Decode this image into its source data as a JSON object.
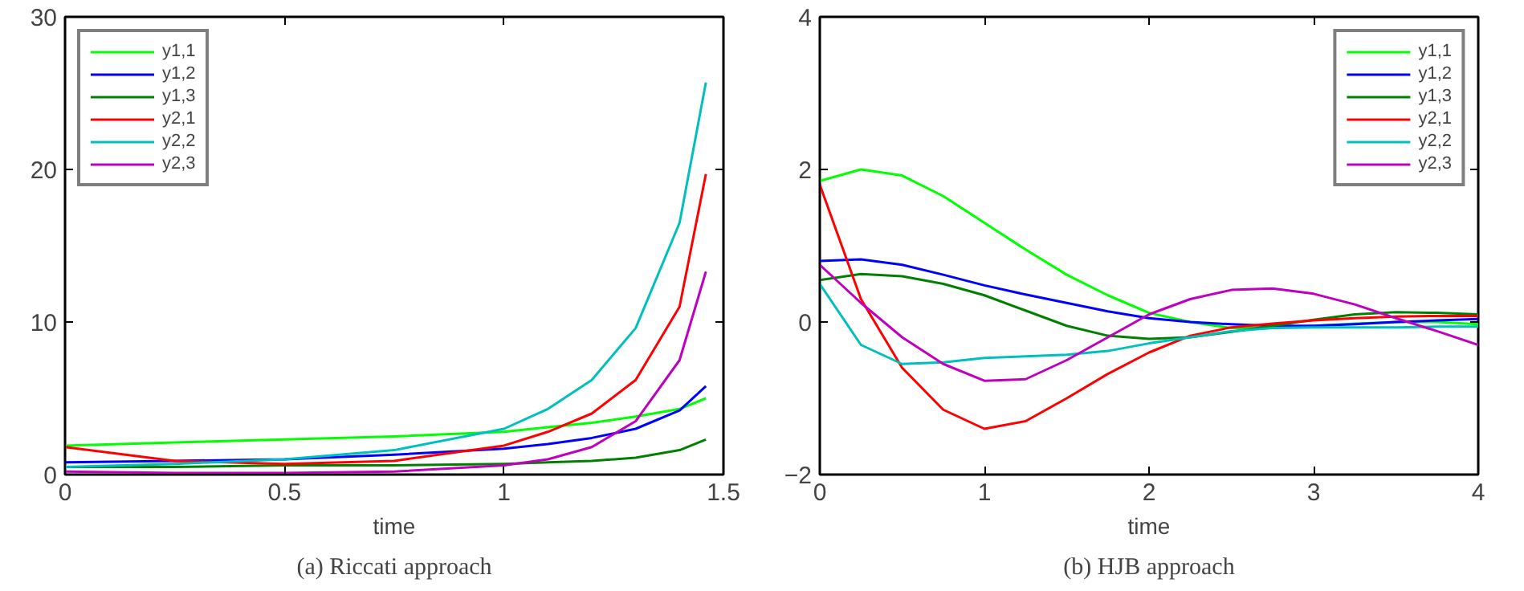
{
  "chart_data": [
    {
      "type": "line",
      "xlabel": "time",
      "annotations": [
        "(a) Riccati approach"
      ],
      "x": [
        0,
        0.25,
        0.5,
        0.75,
        1.0,
        1.1,
        1.2,
        1.3,
        1.4,
        1.46
      ],
      "xlim": [
        0,
        1.5
      ],
      "xticks": [
        0,
        0.5,
        1,
        1.5
      ],
      "ylim": [
        0,
        30
      ],
      "yticks": [
        0,
        10,
        20,
        30
      ],
      "grid": false,
      "legend": "top left",
      "line_style": "solid",
      "marker": "none",
      "series": [
        {
          "name": "y1,1",
          "color": "#00ff00",
          "values": [
            1.9,
            2.1,
            2.3,
            2.5,
            2.8,
            3.1,
            3.4,
            3.8,
            4.3,
            5.0
          ]
        },
        {
          "name": "y1,2",
          "color": "#0000ff",
          "values": [
            0.8,
            0.9,
            1.0,
            1.3,
            1.7,
            2.0,
            2.4,
            3.0,
            4.2,
            5.8
          ]
        },
        {
          "name": "y1,3",
          "color": "#008000",
          "values": [
            0.5,
            0.5,
            0.6,
            0.6,
            0.7,
            0.8,
            0.9,
            1.1,
            1.6,
            2.3
          ]
        },
        {
          "name": "y2,1",
          "color": "#ff0000",
          "values": [
            1.8,
            0.9,
            0.7,
            0.9,
            1.9,
            2.8,
            4.0,
            6.2,
            11.0,
            19.7
          ]
        },
        {
          "name": "y2,2",
          "color": "#00bfbf",
          "values": [
            0.5,
            0.7,
            1.0,
            1.6,
            3.0,
            4.3,
            6.2,
            9.6,
            16.5,
            25.7
          ]
        },
        {
          "name": "y2,3",
          "color": "#bf00bf",
          "values": [
            0.2,
            0.1,
            0.1,
            0.2,
            0.6,
            1.0,
            1.8,
            3.5,
            7.5,
            13.3
          ]
        }
      ]
    },
    {
      "type": "line",
      "xlabel": "time",
      "annotations": [
        "(b) HJB approach"
      ],
      "x": [
        0,
        0.25,
        0.5,
        0.75,
        1,
        1.25,
        1.5,
        1.75,
        2,
        2.25,
        2.5,
        2.75,
        3,
        3.25,
        3.5,
        3.75,
        4
      ],
      "xlim": [
        0,
        4
      ],
      "xticks": [
        0,
        1,
        2,
        3,
        4
      ],
      "ylim": [
        -2,
        4
      ],
      "yticks": [
        -2,
        0,
        2,
        4
      ],
      "grid": false,
      "legend": "top right",
      "line_style": "solid",
      "marker": "none",
      "series": [
        {
          "name": "y1,1",
          "color": "#00ff00",
          "values": [
            1.85,
            2.0,
            1.92,
            1.65,
            1.3,
            0.95,
            0.62,
            0.35,
            0.12,
            0.0,
            -0.08,
            -0.08,
            -0.05,
            -0.02,
            0.0,
            0.0,
            -0.03
          ]
        },
        {
          "name": "y1,2",
          "color": "#0000ff",
          "values": [
            0.8,
            0.82,
            0.75,
            0.62,
            0.48,
            0.36,
            0.25,
            0.14,
            0.05,
            0.0,
            -0.03,
            -0.05,
            -0.05,
            -0.03,
            0.0,
            0.02,
            0.04
          ]
        },
        {
          "name": "y1,3",
          "color": "#008000",
          "values": [
            0.55,
            0.63,
            0.6,
            0.5,
            0.35,
            0.15,
            -0.05,
            -0.18,
            -0.22,
            -0.2,
            -0.13,
            -0.05,
            0.03,
            0.1,
            0.13,
            0.12,
            0.1
          ]
        },
        {
          "name": "y2,1",
          "color": "#ff0000",
          "values": [
            1.8,
            0.3,
            -0.6,
            -1.15,
            -1.4,
            -1.3,
            -1.0,
            -0.68,
            -0.4,
            -0.18,
            -0.07,
            -0.02,
            0.02,
            0.05,
            0.07,
            0.08,
            0.08
          ]
        },
        {
          "name": "y2,2",
          "color": "#00bfbf",
          "values": [
            0.5,
            -0.3,
            -0.55,
            -0.53,
            -0.47,
            -0.45,
            -0.43,
            -0.38,
            -0.28,
            -0.2,
            -0.12,
            -0.08,
            -0.07,
            -0.07,
            -0.07,
            -0.06,
            -0.06
          ]
        },
        {
          "name": "y2,3",
          "color": "#bf00bf",
          "values": [
            0.75,
            0.25,
            -0.2,
            -0.55,
            -0.77,
            -0.75,
            -0.5,
            -0.2,
            0.1,
            0.3,
            0.42,
            0.44,
            0.37,
            0.23,
            0.05,
            -0.12,
            -0.3
          ]
        }
      ]
    }
  ]
}
